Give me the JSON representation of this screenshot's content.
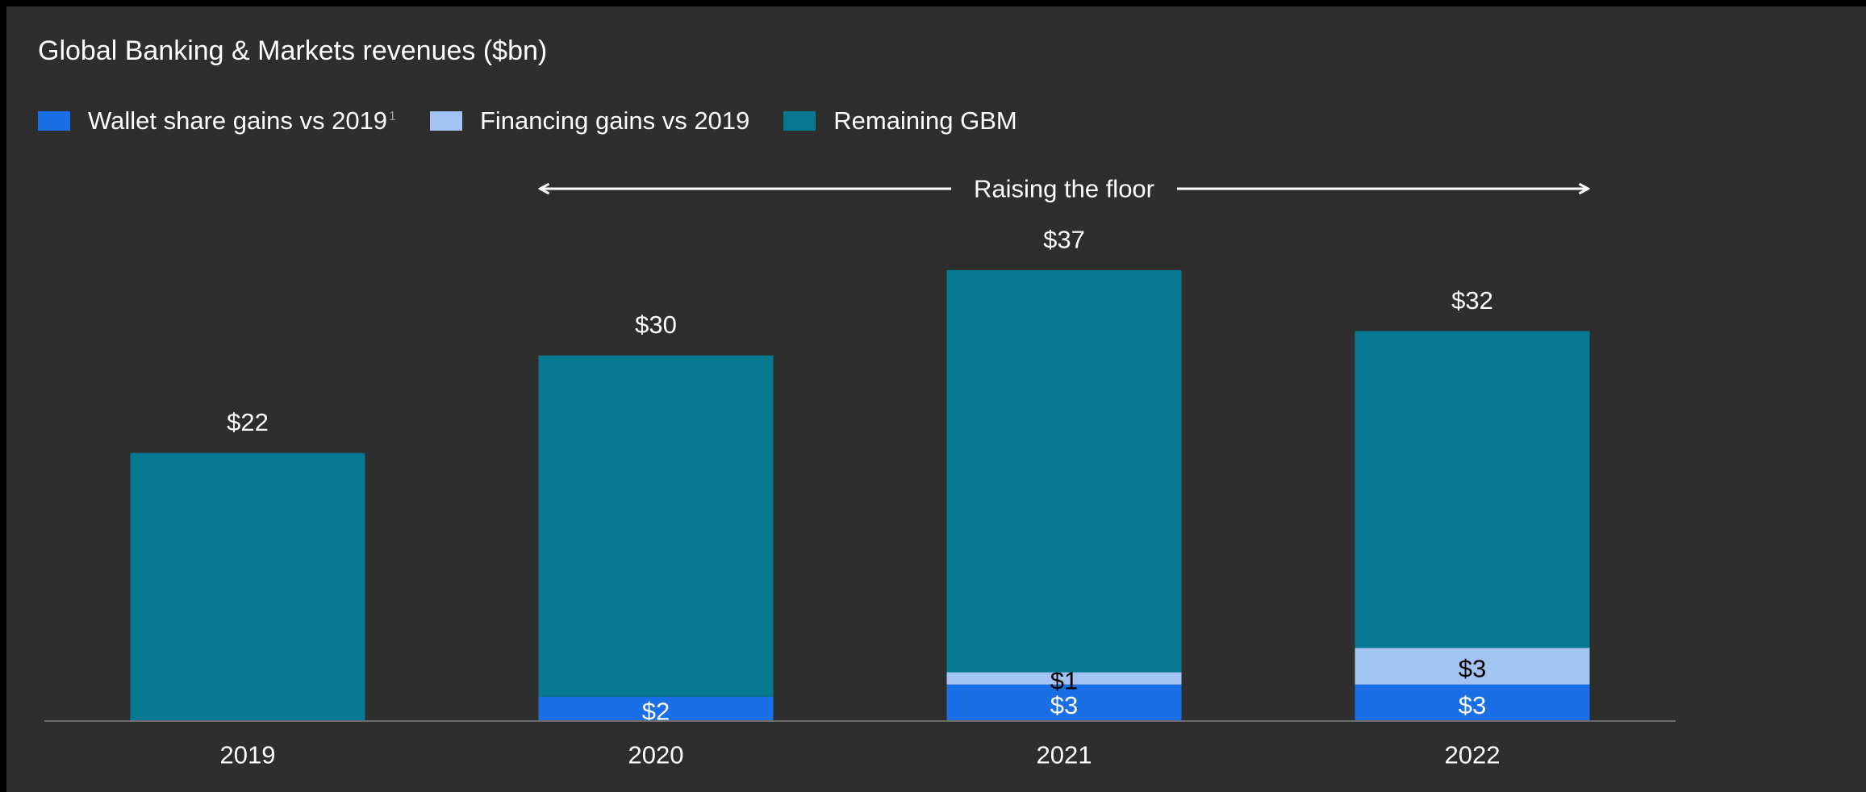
{
  "chart_data": {
    "type": "bar",
    "stacked": true,
    "title": "Global Banking & Markets revenues ($bn)",
    "categories": [
      "2019",
      "2020",
      "2021",
      "2022"
    ],
    "series": [
      {
        "name": "Wallet share gains vs 2019",
        "name_superscript": "1",
        "color": "#1a6ee6",
        "values": [
          0,
          2,
          3,
          3
        ],
        "labels": [
          "",
          "$2",
          "$3",
          "$3"
        ],
        "label_color": "#ffffff"
      },
      {
        "name": "Financing gains vs 2019",
        "color": "#a3c4f2",
        "values": [
          0,
          0,
          1,
          3
        ],
        "labels": [
          "",
          "",
          "$1",
          "$3"
        ],
        "label_color": "#000000"
      },
      {
        "name": "Remaining GBM",
        "color": "#067891",
        "values": [
          22,
          28,
          33,
          26
        ],
        "labels": [
          "",
          "",
          "",
          ""
        ],
        "label_color": "#ffffff"
      }
    ],
    "totals": [
      22,
      30,
      37,
      32
    ],
    "total_labels": [
      "$22",
      "$30",
      "$37",
      "$32"
    ],
    "ylim": [
      0,
      37
    ],
    "xlabel": "",
    "ylabel": "",
    "grid": false,
    "legend_position": "top-left",
    "annotation": {
      "text": "Raising the floor",
      "type": "double-arrow",
      "spans_categories": [
        "2020",
        "2022"
      ]
    }
  },
  "colors": {
    "background": "#2f2e2e",
    "text": "#ffffff",
    "axis": "#6e6e6e"
  }
}
